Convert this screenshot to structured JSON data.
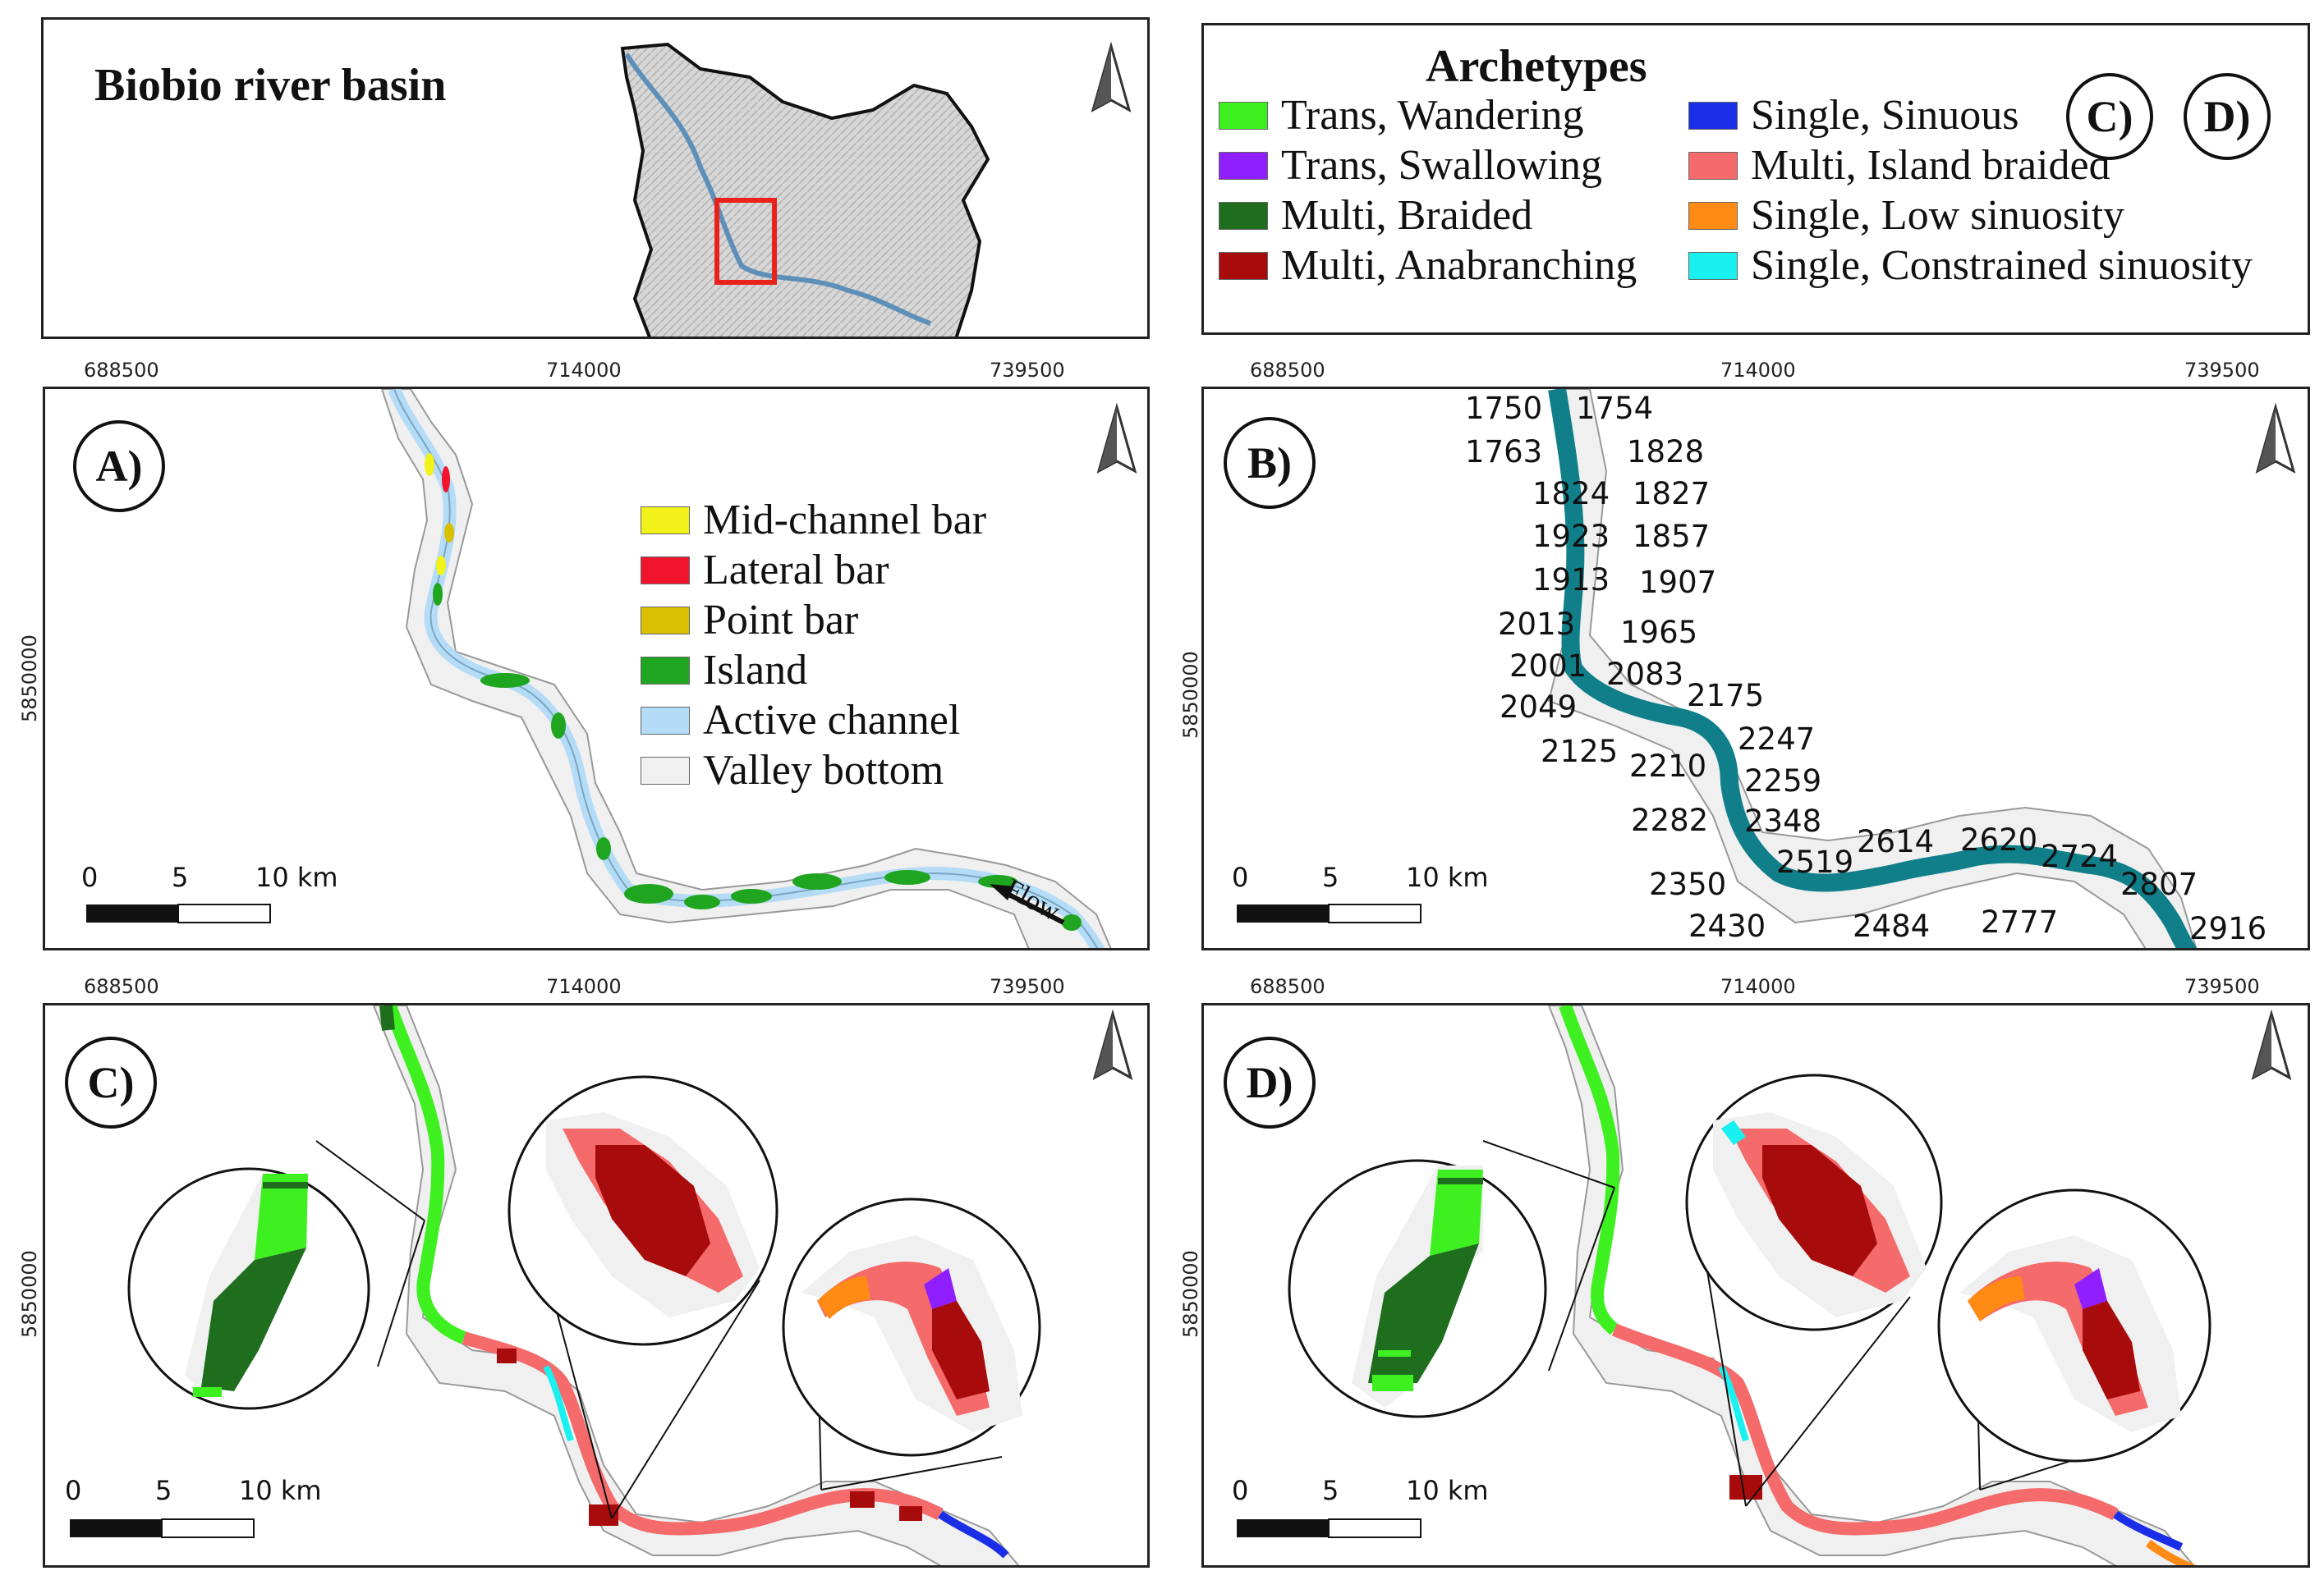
{
  "basin_title": "Biobio river basin",
  "archetypes_title": "Archetypes",
  "colors": {
    "trans_wandering": "#3ff021",
    "trans_swallowing": "#8f1fff",
    "multi_braided": "#1e6e1e",
    "multi_anabranching": "#a80b0b",
    "single_sinuous": "#1a2ee8",
    "multi_island_braided": "#f56a6a",
    "single_low_sinuosity": "#ff8a14",
    "single_constrained_sinuosity": "#19f0f0",
    "mid_channel_bar": "#f2f21a",
    "lateral_bar": "#f0142c",
    "point_bar": "#d9c000",
    "island": "#1fa51f",
    "active_channel": "#b5dcf6",
    "valley_bottom": "#f0f0f0",
    "river_b": "#107f8a",
    "inset_frame": "#e8211a"
  },
  "archetypes_legend": [
    {
      "label": "Trans, Wandering",
      "color": "#3ff021"
    },
    {
      "label": "Trans, Swallowing",
      "color": "#8f1fff"
    },
    {
      "label": "Multi, Braided",
      "color": "#1e6e1e"
    },
    {
      "label": "Multi, Anabranching",
      "color": "#a80b0b"
    },
    {
      "label": "Single, Sinuous",
      "color": "#1a2ee8"
    },
    {
      "label": "Multi, Island braided",
      "color": "#f56a6a"
    },
    {
      "label": "Single, Low sinuosity",
      "color": "#ff8a14"
    },
    {
      "label": "Single, Constrained sinuosity",
      "color": "#19f0f0"
    }
  ],
  "legend_panels": [
    "C)",
    "D)"
  ],
  "panel_a": {
    "label": "A)",
    "legend": [
      {
        "label": "Mid-channel bar",
        "color": "#f2f21a"
      },
      {
        "label": "Lateral bar",
        "color": "#f0142c"
      },
      {
        "label": "Point bar",
        "color": "#d9c000"
      },
      {
        "label": "Island",
        "color": "#1fa51f"
      },
      {
        "label": "Active channel",
        "color": "#b5dcf6"
      },
      {
        "label": "Valley bottom",
        "color": "#f0f0f0"
      }
    ],
    "flow_label": "Flow"
  },
  "panel_b": {
    "label": "B)",
    "km_marks": [
      "1750",
      "1754",
      "1763",
      "1828",
      "1824",
      "1827",
      "1923",
      "1857",
      "1913",
      "1907",
      "2013",
      "1965",
      "2001",
      "2083",
      "2175",
      "2049",
      "2247",
      "2125",
      "2210",
      "2259",
      "2282",
      "2348",
      "2614",
      "2620",
      "2724",
      "2519",
      "2350",
      "2807",
      "2430",
      "2484",
      "2777",
      "2916"
    ]
  },
  "panel_c": {
    "label": "C)"
  },
  "panel_d": {
    "label": "D)"
  },
  "x_ticks": [
    "688500",
    "714000",
    "739500"
  ],
  "y_tick": "5850000",
  "scale": {
    "zero": "0",
    "five": "5",
    "ten": "10 km"
  }
}
